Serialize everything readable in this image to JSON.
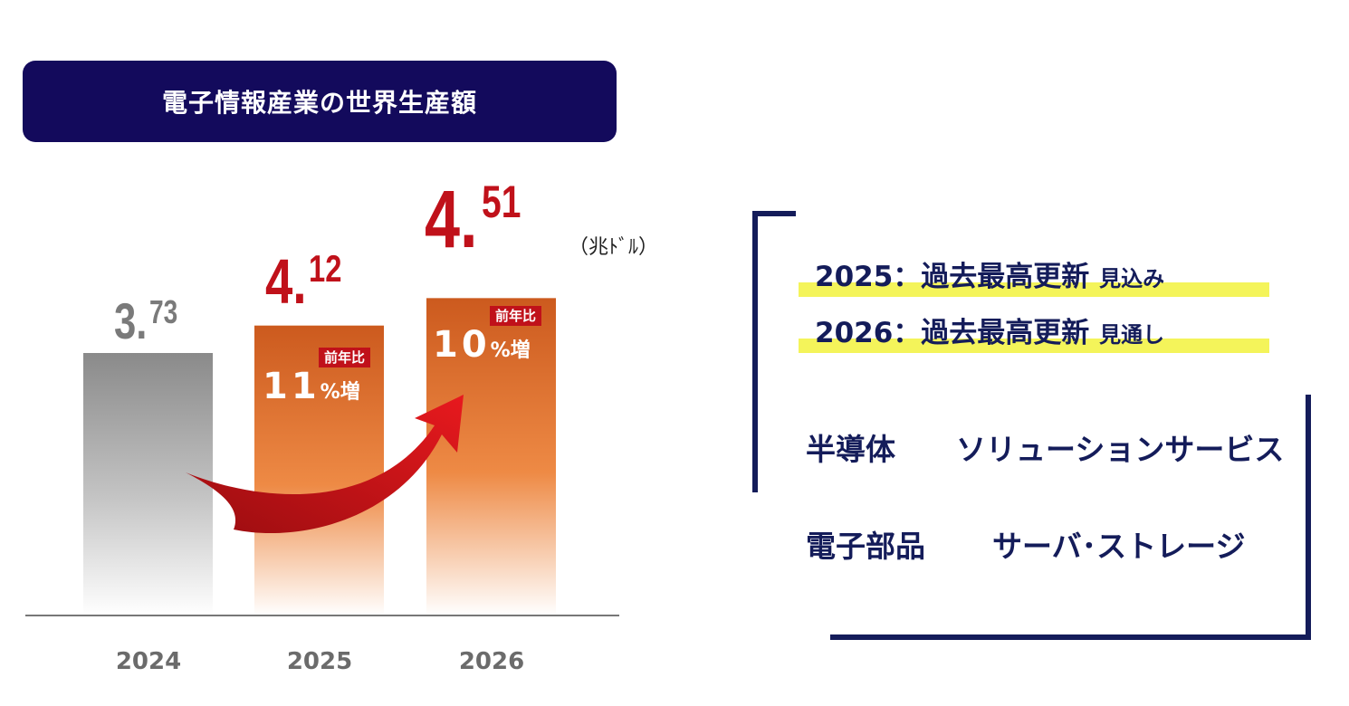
{
  "title": "電子情報産業の世界生産額",
  "unit": "（兆ﾄﾞﾙ）",
  "chart_data": {
    "type": "bar",
    "title": "電子情報産業の世界生産額",
    "categories": [
      "2024",
      "2025",
      "2026"
    ],
    "values": [
      3.73,
      4.12,
      4.51
    ],
    "value_labels": [
      {
        "int": "3.",
        "dec": "73"
      },
      {
        "int": "4.",
        "dec": "12"
      },
      {
        "int": "4.",
        "dec": "51"
      }
    ],
    "growth": [
      null,
      {
        "badge": "前年比",
        "num": "11",
        "pct": "%増"
      },
      {
        "badge": "前年比",
        "num": "10",
        "pct": "%増"
      }
    ],
    "ylim": [
      0,
      5.2
    ],
    "colors": {
      "2024": "#8c8c8c",
      "2025": "#d86a28",
      "2026": "#d86a28",
      "value_gray": "#7a7a7a",
      "value_red": "#c0111a",
      "arrow": "#d4141b"
    },
    "grid": false
  },
  "highlights": [
    {
      "year_text": "2025：過去最高更新",
      "suffix": "見込み"
    },
    {
      "year_text": "2026：過去最高更新",
      "suffix": "見通し"
    }
  ],
  "fields": [
    {
      "left": "半導体",
      "right": "ソリューションサービス"
    },
    {
      "left": "電子部品",
      "right": "サーバ･ストレージ"
    }
  ],
  "accent_color": "#141c5a",
  "highlight_color": "#f4f45a"
}
